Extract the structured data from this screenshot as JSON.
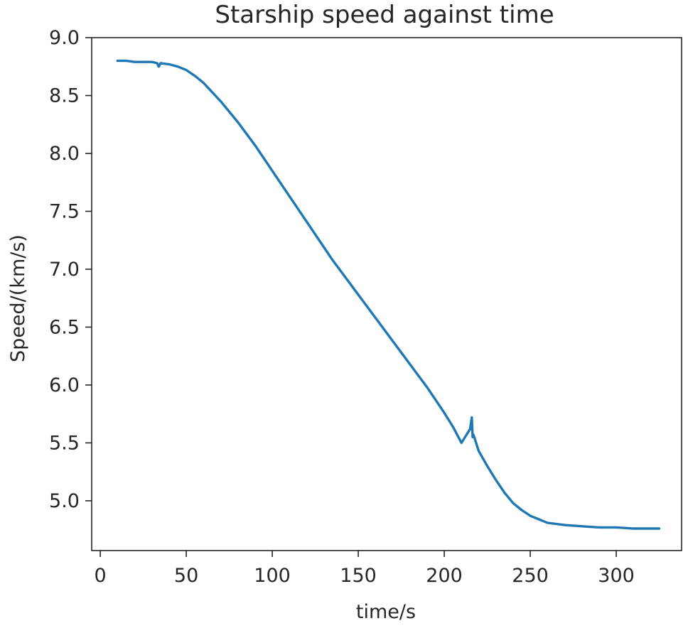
{
  "chart_data": {
    "type": "line",
    "title": "Starship speed against time",
    "xlabel": "time/s",
    "ylabel": "Speed/(km/s)",
    "xlim": [
      -5,
      338
    ],
    "ylim": [
      4.57,
      9.0
    ],
    "xticks": [
      0,
      50,
      100,
      150,
      200,
      250,
      300
    ],
    "xtick_labels": [
      "0",
      "50",
      "100",
      "150",
      "200",
      "250",
      "300"
    ],
    "yticks": [
      5.0,
      5.5,
      6.0,
      6.5,
      7.0,
      7.5,
      8.0,
      8.5,
      9.0
    ],
    "ytick_labels": [
      "5.0",
      "5.5",
      "6.0",
      "6.5",
      "7.0",
      "7.5",
      "8.0",
      "8.5",
      "9.0"
    ],
    "grid": false,
    "series": [
      {
        "color": "#1f77b4",
        "points": [
          [
            10,
            8.8
          ],
          [
            15,
            8.8
          ],
          [
            20,
            8.79
          ],
          [
            25,
            8.79
          ],
          [
            30,
            8.79
          ],
          [
            33,
            8.78
          ],
          [
            34,
            8.75
          ],
          [
            35,
            8.78
          ],
          [
            40,
            8.77
          ],
          [
            45,
            8.75
          ],
          [
            50,
            8.72
          ],
          [
            55,
            8.67
          ],
          [
            60,
            8.61
          ],
          [
            65,
            8.53
          ],
          [
            70,
            8.45
          ],
          [
            75,
            8.36
          ],
          [
            80,
            8.27
          ],
          [
            85,
            8.17
          ],
          [
            90,
            8.07
          ],
          [
            95,
            7.96
          ],
          [
            100,
            7.85
          ],
          [
            105,
            7.74
          ],
          [
            110,
            7.63
          ],
          [
            115,
            7.52
          ],
          [
            120,
            7.41
          ],
          [
            125,
            7.3
          ],
          [
            130,
            7.19
          ],
          [
            135,
            7.08
          ],
          [
            140,
            6.98
          ],
          [
            145,
            6.88
          ],
          [
            150,
            6.78
          ],
          [
            155,
            6.68
          ],
          [
            160,
            6.58
          ],
          [
            165,
            6.48
          ],
          [
            170,
            6.38
          ],
          [
            175,
            6.28
          ],
          [
            180,
            6.18
          ],
          [
            185,
            6.08
          ],
          [
            190,
            5.98
          ],
          [
            195,
            5.87
          ],
          [
            200,
            5.76
          ],
          [
            205,
            5.64
          ],
          [
            210,
            5.5
          ],
          [
            215,
            5.62
          ],
          [
            216,
            5.72
          ],
          [
            216.5,
            5.55
          ],
          [
            217,
            5.57
          ],
          [
            220,
            5.43
          ],
          [
            225,
            5.3
          ],
          [
            230,
            5.18
          ],
          [
            235,
            5.07
          ],
          [
            240,
            4.98
          ],
          [
            245,
            4.92
          ],
          [
            250,
            4.87
          ],
          [
            255,
            4.84
          ],
          [
            260,
            4.81
          ],
          [
            265,
            4.8
          ],
          [
            270,
            4.79
          ],
          [
            280,
            4.78
          ],
          [
            290,
            4.77
          ],
          [
            300,
            4.77
          ],
          [
            310,
            4.76
          ],
          [
            325,
            4.76
          ]
        ]
      }
    ]
  }
}
